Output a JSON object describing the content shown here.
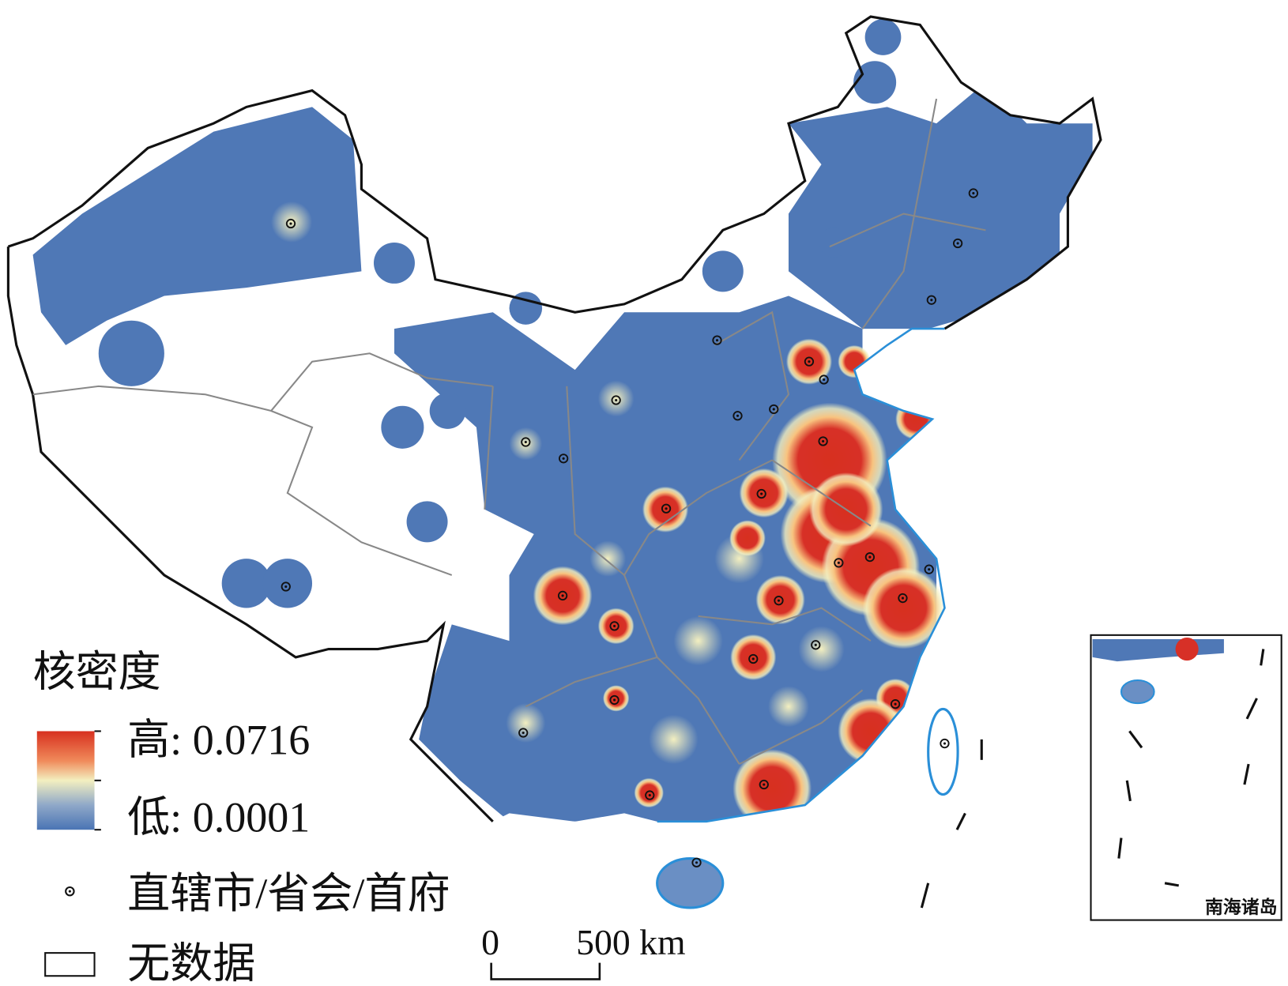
{
  "legend": {
    "title": "核密度",
    "high": "高: 0.0716",
    "low": "低: 0.0001",
    "capital": "直辖市/省会/首府",
    "no_data": "无数据"
  },
  "scale_bar": {
    "start": "0",
    "end": "500 km"
  },
  "inset": {
    "label": "南海诸岛"
  }
}
